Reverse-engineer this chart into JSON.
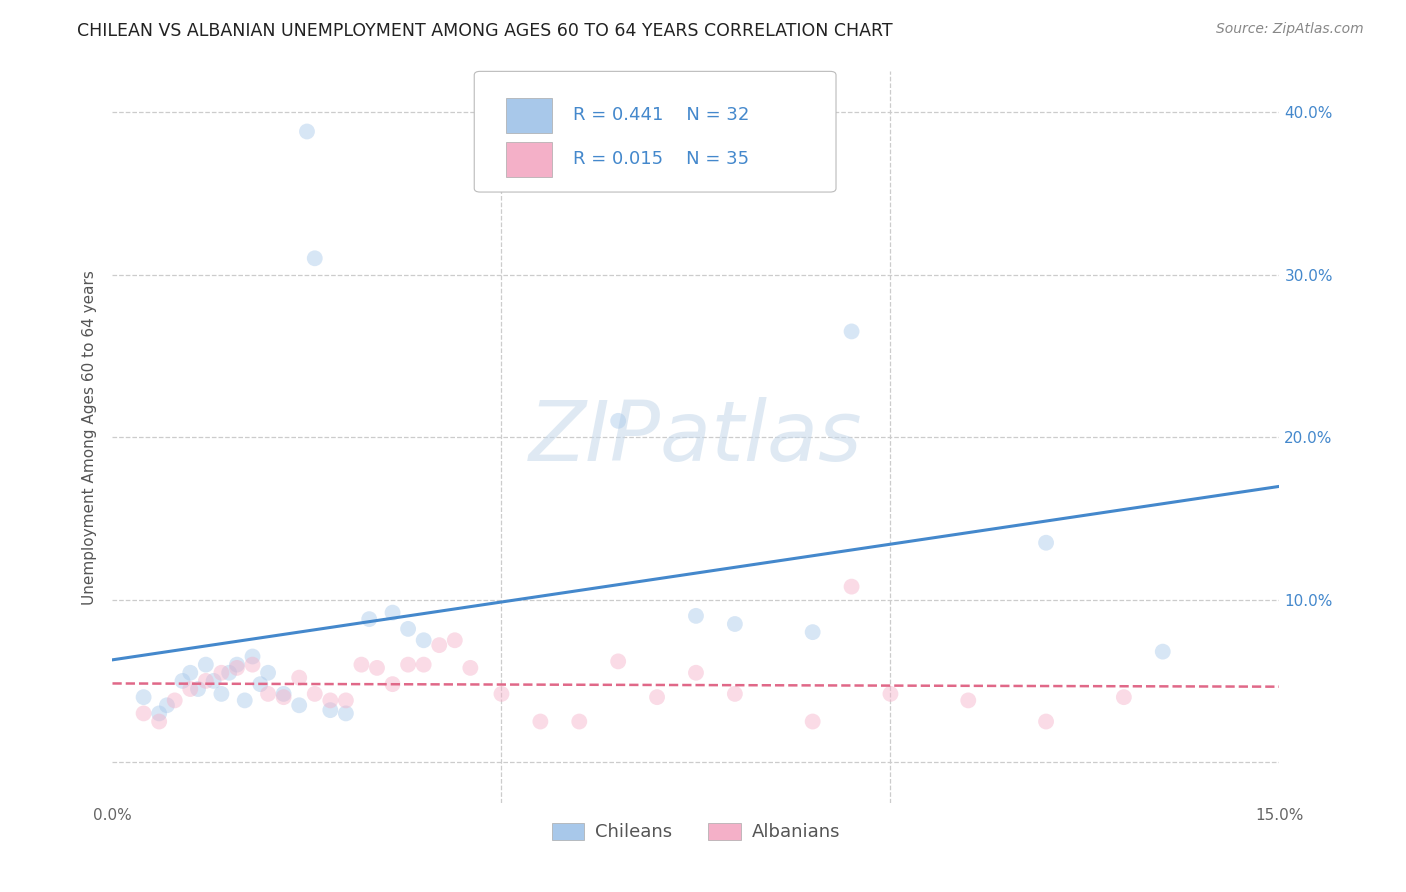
{
  "title": "CHILEAN VS ALBANIAN UNEMPLOYMENT AMONG AGES 60 TO 64 YEARS CORRELATION CHART",
  "source": "Source: ZipAtlas.com",
  "ylabel": "Unemployment Among Ages 60 to 64 years",
  "xlim": [
    0.0,
    0.15
  ],
  "ylim": [
    -0.025,
    0.425
  ],
  "chilean_color": "#a8c8ea",
  "albanian_color": "#f4b0c8",
  "chilean_line_color": "#4488cc",
  "albanian_line_color": "#e06888",
  "legend_text_color": "#4488cc",
  "legend_R_chilean": "R = 0.441",
  "legend_N_chilean": "N = 32",
  "legend_R_albanian": "R = 0.015",
  "legend_N_albanian": "N = 35",
  "watermark_text": "ZIPatlas",
  "chilean_x": [
    0.004,
    0.006,
    0.007,
    0.009,
    0.01,
    0.011,
    0.012,
    0.013,
    0.014,
    0.015,
    0.016,
    0.017,
    0.018,
    0.019,
    0.02,
    0.022,
    0.024,
    0.025,
    0.026,
    0.028,
    0.03,
    0.033,
    0.036,
    0.038,
    0.04,
    0.065,
    0.075,
    0.08,
    0.09,
    0.095,
    0.12,
    0.135
  ],
  "chilean_y": [
    0.04,
    0.03,
    0.035,
    0.05,
    0.055,
    0.045,
    0.06,
    0.05,
    0.042,
    0.055,
    0.06,
    0.038,
    0.065,
    0.048,
    0.055,
    0.042,
    0.035,
    0.388,
    0.31,
    0.032,
    0.03,
    0.088,
    0.092,
    0.082,
    0.075,
    0.21,
    0.09,
    0.085,
    0.08,
    0.265,
    0.135,
    0.068
  ],
  "albanian_x": [
    0.004,
    0.006,
    0.008,
    0.01,
    0.012,
    0.014,
    0.016,
    0.018,
    0.02,
    0.022,
    0.024,
    0.026,
    0.028,
    0.03,
    0.032,
    0.034,
    0.036,
    0.038,
    0.04,
    0.042,
    0.044,
    0.046,
    0.05,
    0.055,
    0.06,
    0.065,
    0.07,
    0.075,
    0.08,
    0.09,
    0.095,
    0.1,
    0.11,
    0.12,
    0.13
  ],
  "albanian_y": [
    0.03,
    0.025,
    0.038,
    0.045,
    0.05,
    0.055,
    0.058,
    0.06,
    0.042,
    0.04,
    0.052,
    0.042,
    0.038,
    0.038,
    0.06,
    0.058,
    0.048,
    0.06,
    0.06,
    0.072,
    0.075,
    0.058,
    0.042,
    0.025,
    0.025,
    0.062,
    0.04,
    0.055,
    0.042,
    0.025,
    0.108,
    0.042,
    0.038,
    0.025,
    0.04
  ],
  "marker_size": 130,
  "alpha": 0.45,
  "title_fontsize": 12.5,
  "axis_label_fontsize": 11,
  "tick_fontsize": 11,
  "legend_fontsize": 13,
  "source_fontsize": 10
}
